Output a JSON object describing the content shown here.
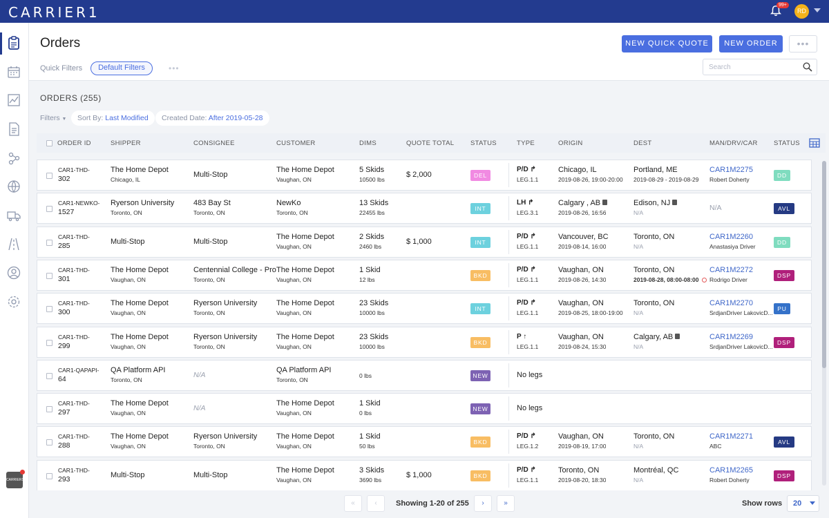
{
  "app": {
    "logo": "CARRIER1",
    "notifications_badge": "99+",
    "user_initials": "RD"
  },
  "sidebar": {
    "items": [
      {
        "icon": "clipboard-icon",
        "active": true
      },
      {
        "icon": "calendar-icon"
      },
      {
        "icon": "chart-icon"
      },
      {
        "icon": "document-icon"
      },
      {
        "icon": "network-icon"
      },
      {
        "icon": "globe-icon"
      },
      {
        "icon": "truck-icon"
      },
      {
        "icon": "road-icon"
      },
      {
        "icon": "users-icon"
      },
      {
        "icon": "settings-icon"
      }
    ],
    "bottom_logo": "CARRIER1"
  },
  "page": {
    "title": "Orders",
    "quick_filters_label": "Quick Filters",
    "default_filters_label": "Default Filters",
    "new_quick_quote": "NEW QUICK QUOTE",
    "new_order": "NEW ORDER",
    "search_placeholder": "Search",
    "orders_count": "ORDERS (255)",
    "filters_label": "Filters",
    "sort_by_label": "Sort By:",
    "sort_by_value": "Last Modified",
    "created_date_label": "Created Date:",
    "created_date_value": "After 2019-05-28"
  },
  "table": {
    "columns": [
      "ORDER ID",
      "SHIPPER",
      "CONSIGNEE",
      "CUSTOMER",
      "DIMS",
      "QUOTE TOTAL",
      "STATUS",
      "TYPE",
      "ORIGIN",
      "DEST",
      "MAN/DRV/CAR",
      "STATUS"
    ],
    "rows": [
      {
        "id1": "CAR1-THD-",
        "id2": "302",
        "shipper": "The Home Depot",
        "shipper_loc": "Chicago, IL",
        "consignee": "Multi-Stop",
        "consignee_loc": "",
        "customer": "The Home Depot",
        "customer_loc": "Vaughan, ON",
        "dims": "5 Skids",
        "weight": "10500 lbs",
        "quote": "$ 2,000",
        "status": "DEL",
        "type": "P/D",
        "leg": "LEG.1.1",
        "origin": "Chicago, IL",
        "origin_time": "2019-08-26, 19:00-20:00",
        "dest": "Portland, ME",
        "dest_time": "2019-08-29 - 2019-08-29",
        "man": "CAR1M2275",
        "driver": "Robert Doherty",
        "status2": "DD"
      },
      {
        "id1": "CAR1-NEWKO-",
        "id2": "1527",
        "shipper": "Ryerson University",
        "shipper_loc": "Toronto, ON",
        "consignee": "483 Bay St",
        "consignee_loc": "Toronto, ON",
        "customer": "NewKo",
        "customer_loc": "Toronto, ON",
        "dims": "13 Skids",
        "weight": "22455 lbs",
        "quote": "",
        "status": "INT",
        "type": "LH",
        "leg": "LEG.3.1",
        "origin": "Calgary , AB",
        "origin_time": "2019-08-26, 16:56",
        "dest": "Edison, NJ",
        "dest_time": "N/A",
        "man": "N/A",
        "driver": "",
        "status2": "AVL"
      },
      {
        "id1": "CAR1-THD-",
        "id2": "285",
        "shipper": "Multi-Stop",
        "shipper_loc": "",
        "consignee": "Multi-Stop",
        "consignee_loc": "",
        "customer": "The Home Depot",
        "customer_loc": "Vaughan, ON",
        "dims": "2 Skids",
        "weight": "2460 lbs",
        "quote": "$ 1,000",
        "status": "INT",
        "type": "P/D",
        "leg": "LEG.1.1",
        "origin": "Vancouver, BC",
        "origin_time": "2019-08-14, 16:00",
        "dest": "Toronto, ON",
        "dest_time": "N/A",
        "man": "CAR1M2260",
        "driver": "Anastasiya Driver",
        "status2": "DD"
      },
      {
        "id1": "CAR1-THD-",
        "id2": "301",
        "shipper": "The Home Depot",
        "shipper_loc": "Vaughan, ON",
        "consignee": "Centennial College - Pro...",
        "consignee_loc": "Toronto, ON",
        "customer": "The Home Depot",
        "customer_loc": "Vaughan, ON",
        "dims": "1 Skid",
        "weight": "12 lbs",
        "quote": "",
        "status": "BKD",
        "type": "P/D",
        "leg": "LEG.1.1",
        "origin": "Vaughan, ON",
        "origin_time": "2019-08-26, 14:30",
        "dest": "Toronto, ON",
        "dest_time": "2019-08-28, 08:00-08:00",
        "man": "CAR1M2272",
        "driver": "Rodrigo Driver",
        "status2": "DSP"
      },
      {
        "id1": "CAR1-THD-",
        "id2": "300",
        "shipper": "The Home Depot",
        "shipper_loc": "Vaughan, ON",
        "consignee": "Ryerson University",
        "consignee_loc": "Toronto, ON",
        "customer": "The Home Depot",
        "customer_loc": "Vaughan, ON",
        "dims": "23 Skids",
        "weight": "10000 lbs",
        "quote": "",
        "status": "INT",
        "type": "P/D",
        "leg": "LEG.1.1",
        "origin": "Vaughan, ON",
        "origin_time": "2019-08-25, 18:00-19:00",
        "dest": "Toronto, ON",
        "dest_time": "N/A",
        "man": "CAR1M2270",
        "driver": "SrdjanDriver LakovicD...",
        "status2": "PU"
      },
      {
        "id1": "CAR1-THD-",
        "id2": "299",
        "shipper": "The Home Depot",
        "shipper_loc": "Vaughan, ON",
        "consignee": "Ryerson University",
        "consignee_loc": "Toronto, ON",
        "customer": "The Home Depot",
        "customer_loc": "Vaughan, ON",
        "dims": "23 Skids",
        "weight": "10000 lbs",
        "quote": "",
        "status": "BKD",
        "type": "P",
        "leg": "LEG.1.1",
        "origin": "Vaughan, ON",
        "origin_time": "2019-08-24, 15:30",
        "dest": "Calgary, AB",
        "dest_time": "N/A",
        "man": "CAR1M2269",
        "driver": "SrdjanDriver LakovicD...",
        "status2": "DSP"
      },
      {
        "id1": "CAR1-QAPAPI-",
        "id2": "64",
        "shipper": "QA Platform API",
        "shipper_loc": "Toronto, ON",
        "consignee": "N/A",
        "consignee_loc": "",
        "customer": "QA Platform API",
        "customer_loc": "Toronto, ON",
        "dims": "",
        "weight": "0 lbs",
        "quote": "",
        "status": "NEW",
        "type": "No legs",
        "leg": "",
        "origin": "",
        "origin_time": "",
        "dest": "",
        "dest_time": "",
        "man": "",
        "driver": "",
        "status2": ""
      },
      {
        "id1": "CAR1-THD-",
        "id2": "297",
        "shipper": "The Home Depot",
        "shipper_loc": "Vaughan, ON",
        "consignee": "N/A",
        "consignee_loc": "",
        "customer": "The Home Depot",
        "customer_loc": "Vaughan, ON",
        "dims": "1 Skid",
        "weight": "0 lbs",
        "quote": "",
        "status": "NEW",
        "type": "No legs",
        "leg": "",
        "origin": "",
        "origin_time": "",
        "dest": "",
        "dest_time": "",
        "man": "",
        "driver": "",
        "status2": ""
      },
      {
        "id1": "CAR1-THD-",
        "id2": "288",
        "shipper": "The Home Depot",
        "shipper_loc": "Vaughan, ON",
        "consignee": "Ryerson University",
        "consignee_loc": "Toronto, ON",
        "customer": "The Home Depot",
        "customer_loc": "Vaughan, ON",
        "dims": "1 Skid",
        "weight": "50 lbs",
        "quote": "",
        "status": "BKD",
        "type": "P/D",
        "leg": "LEG.1.2",
        "origin": "Vaughan, ON",
        "origin_time": "2019-08-19, 17:00",
        "dest": "Toronto, ON",
        "dest_time": "N/A",
        "man": "CAR1M2271",
        "driver": "ABC",
        "status2": "AVL"
      },
      {
        "id1": "CAR1-THD-",
        "id2": "293",
        "shipper": "Multi-Stop",
        "shipper_loc": "",
        "consignee": "Multi-Stop",
        "consignee_loc": "",
        "customer": "The Home Depot",
        "customer_loc": "Vaughan, ON",
        "dims": "3 Skids",
        "weight": "3690 lbs",
        "quote": "$ 1,000",
        "status": "BKD",
        "type": "P/D",
        "leg": "LEG.1.1",
        "origin": "Toronto, ON",
        "origin_time": "2019-08-20, 18:30",
        "dest": "Montréal, QC",
        "dest_time": "N/A",
        "man": "CAR1M2265",
        "driver": "Robert Doherty",
        "status2": "DSP"
      }
    ]
  },
  "pagination": {
    "first": "«",
    "prev": "‹",
    "next": "›",
    "last": "»",
    "showing": "Showing 1-20 of 255",
    "show_rows_label": "Show rows",
    "rows_value": "20"
  }
}
